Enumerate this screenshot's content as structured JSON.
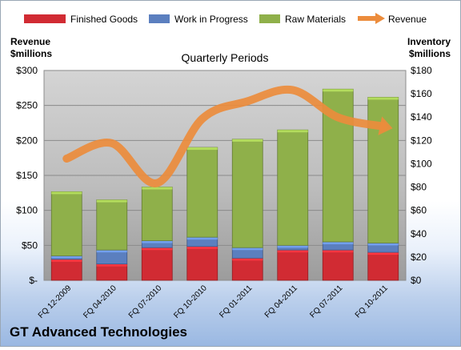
{
  "page": {
    "company": "GT Advanced Technologies"
  },
  "chart_data": {
    "type": "bar",
    "subtitle": "Quarterly Periods",
    "categories": [
      "FQ 12-2009",
      "FQ 04-2010",
      "FQ 07-2010",
      "FQ 10-2010",
      "FQ 01-2011",
      "FQ 04-2011",
      "FQ 07-2011",
      "FQ 10-2011"
    ],
    "stacked": true,
    "series": [
      {
        "name": "Finished Goods",
        "axis": "right",
        "color": "#d12b33",
        "values": [
          18,
          14,
          28,
          29,
          19,
          26,
          26,
          24
        ]
      },
      {
        "name": "Work in Progress",
        "axis": "right",
        "color": "#5b7fbf",
        "values": [
          3,
          12,
          6,
          8,
          9,
          4,
          7,
          8
        ]
      },
      {
        "name": "Raw Materials",
        "axis": "right",
        "color": "#8fb04a",
        "values": [
          55,
          43,
          46,
          77,
          93,
          99,
          131,
          125
        ]
      },
      {
        "name": "Revenue",
        "type": "line",
        "axis": "left",
        "color": "#ec8c3c",
        "values": [
          174,
          196,
          139,
          231,
          256,
          272,
          233,
          220
        ]
      }
    ],
    "left_axis": {
      "label_line1": "Revenue",
      "label_line2": "$millions",
      "ylim": [
        0,
        300
      ],
      "ticks": [
        0,
        50,
        100,
        150,
        200,
        250,
        300
      ],
      "tick_labels": [
        "$-",
        "$50",
        "$100",
        "$150",
        "$200",
        "$250",
        "$300"
      ]
    },
    "right_axis": {
      "label_line1": "Inventory",
      "label_line2": "$millions",
      "ylim": [
        0,
        180
      ],
      "ticks": [
        0,
        20,
        40,
        60,
        80,
        100,
        120,
        140,
        160,
        180
      ],
      "tick_labels": [
        "$0",
        "$20",
        "$40",
        "$60",
        "$80",
        "$100",
        "$120",
        "$140",
        "$160",
        "$180"
      ]
    },
    "legend_position": "top",
    "grid": true
  }
}
